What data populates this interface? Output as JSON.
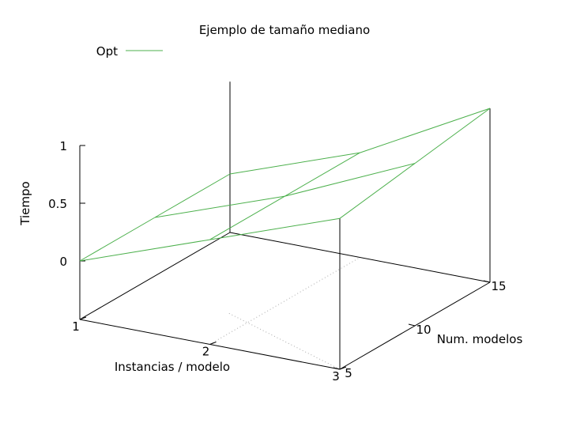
{
  "chart_data": {
    "type": "surface-3d",
    "title": "Ejemplo de tamaño mediano",
    "xlabel": "Instancias / modelo",
    "ylabel": "Num. modelos",
    "zlabel": "Tiempo",
    "x_ticks": [
      "1",
      "2",
      "3"
    ],
    "y_ticks": [
      "5",
      "10",
      "15"
    ],
    "z_ticks": [
      "0",
      "0.5",
      "1"
    ],
    "xlim": [
      1,
      3
    ],
    "ylim": [
      5,
      15
    ],
    "zlim": [
      0,
      1
    ],
    "grid": false,
    "legend_position": "top-left",
    "series": [
      {
        "name": "Opt",
        "color": "#4cb04c",
        "x": [
          1,
          2,
          3
        ],
        "y": [
          5,
          10,
          15
        ],
        "z": [
          [
            0.0,
            0.4,
            0.8
          ],
          [
            0.0,
            0.4,
            0.9
          ],
          [
            0.0,
            0.4,
            1.0
          ]
        ]
      }
    ]
  }
}
